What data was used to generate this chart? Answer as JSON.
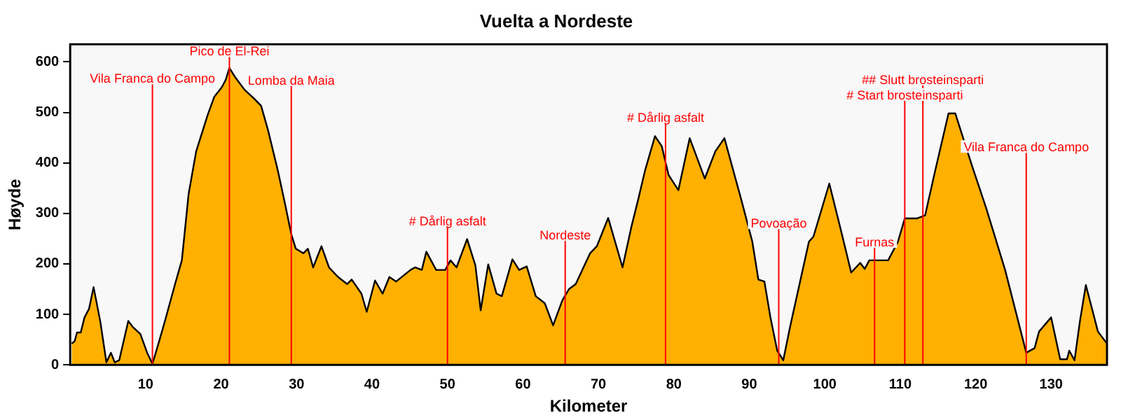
{
  "chart_data": {
    "type": "area",
    "title": "Vuelta a Nordeste",
    "xlabel": "Kilometer",
    "ylabel": "Høyde",
    "x": [
      0.2,
      0.6,
      0.9,
      1.4,
      1.9,
      2.5,
      3.1,
      4.0,
      4.8,
      5.4,
      5.9,
      6.5,
      7.7,
      8.3,
      9.3,
      10.2,
      10.9,
      11.7,
      12.6,
      13.9,
      14.8,
      15.7,
      16.7,
      18.2,
      19.1,
      20.1,
      20.6,
      21.1,
      21.9,
      23.1,
      24.4,
      25.3,
      26.2,
      27.5,
      28.4,
      29.3,
      29.9,
      30.9,
      31.5,
      32.2,
      33.3,
      34.3,
      35.5,
      36.7,
      37.3,
      38.6,
      39.3,
      40.4,
      41.4,
      42.3,
      43.2,
      45.1,
      45.7,
      46.6,
      47.2,
      48.5,
      49.7,
      50.4,
      51.2,
      52.6,
      53.7,
      54.4,
      55.4,
      56.5,
      57.2,
      58.6,
      59.5,
      60.5,
      61.7,
      62.9,
      64.0,
      65.2,
      66.1,
      67.0,
      68.9,
      69.8,
      71.3,
      73.2,
      74.4,
      75.3,
      76.2,
      77.5,
      78.4,
      79.3,
      80.6,
      82.1,
      84.1,
      85.5,
      86.7,
      88.9,
      90.4,
      91.2,
      92.0,
      92.8,
      93.7,
      94.5,
      95.4,
      97.9,
      98.5,
      100.6,
      102.2,
      103.5,
      104.7,
      105.3,
      105.9,
      108.4,
      109.7,
      110.6,
      112.2,
      113.3,
      114.5,
      116.4,
      117.3,
      119.5,
      121.4,
      123.9,
      126.7,
      127.8,
      128.4,
      130.0,
      131.2,
      132.1,
      132.4,
      133.1,
      133.8,
      134.6,
      136.2,
      137.4
    ],
    "series": [
      {
        "color": "#ffb000",
        "values": [
          42,
          47,
          64,
          64,
          94,
          111,
          154,
          85,
          5,
          24,
          5,
          9,
          87,
          75,
          61,
          24,
          2,
          42,
          89,
          160,
          207,
          339,
          423,
          494,
          531,
          550,
          564,
          588,
          569,
          545,
          527,
          513,
          466,
          386,
          324,
          259,
          230,
          221,
          230,
          193,
          235,
          193,
          174,
          160,
          169,
          141,
          105,
          167,
          141,
          174,
          165,
          188,
          193,
          188,
          224,
          188,
          188,
          207,
          193,
          249,
          197,
          108,
          199,
          141,
          136,
          209,
          188,
          195,
          136,
          122,
          78,
          127,
          150,
          160,
          221,
          235,
          291,
          193,
          275,
          329,
          386,
          453,
          433,
          376,
          346,
          449,
          369,
          423,
          449,
          329,
          244,
          169,
          165,
          94,
          28,
          9,
          75,
          244,
          254,
          359,
          263,
          183,
          202,
          190,
          207,
          207,
          244,
          290,
          290,
          296,
          376,
          498,
          498,
          395,
          310,
          188,
          24,
          33,
          66,
          94,
          11,
          11,
          28,
          9,
          85,
          158,
          66,
          42
        ]
      }
    ],
    "xlim": [
      0,
      137.4
    ],
    "ylim": [
      0,
      635
    ],
    "xticks": [
      10,
      20,
      30,
      40,
      50,
      60,
      70,
      80,
      90,
      100,
      110,
      120,
      130
    ],
    "yticks": [
      0,
      100,
      200,
      300,
      400,
      500,
      600
    ],
    "grid": false,
    "legend": false,
    "ref_lines": [
      {
        "axis": "x",
        "value": 10.9,
        "label": "Vila Franca do Campo",
        "color": "#ff0000"
      },
      {
        "axis": "x",
        "value": 21.1,
        "label": "Pico de El-Rei",
        "color": "#ff0000"
      },
      {
        "axis": "x",
        "value": 29.3,
        "label": "Lomba da Maia",
        "color": "#ff0000"
      },
      {
        "axis": "x",
        "value": 50.0,
        "label": "# Dårlig asfalt",
        "color": "#ff0000"
      },
      {
        "axis": "x",
        "value": 65.6,
        "label": "Nordeste",
        "color": "#ff0000"
      },
      {
        "axis": "x",
        "value": 78.9,
        "label": "# Dårlig asfalt",
        "color": "#ff0000"
      },
      {
        "axis": "x",
        "value": 93.9,
        "label": "Povoação",
        "color": "#ff0000"
      },
      {
        "axis": "x",
        "value": 106.6,
        "label": "Furnas",
        "color": "#ff0000"
      },
      {
        "axis": "x",
        "value": 110.6,
        "label": "# Start brosteinsparti",
        "color": "#ff0000"
      },
      {
        "axis": "x",
        "value": 113.0,
        "label": "## Slutt brosteinsparti",
        "color": "#ff0000"
      },
      {
        "axis": "x",
        "value": 126.7,
        "label": "Vila Franca do Campo",
        "color": "#ff0000"
      }
    ]
  }
}
